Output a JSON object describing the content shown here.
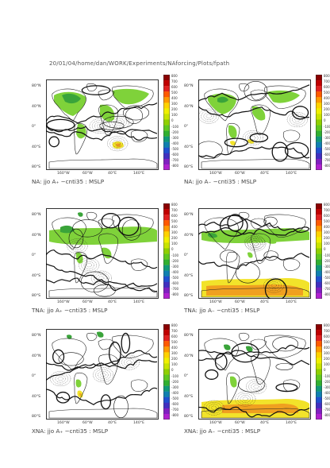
{
  "page": {
    "title": "20/01/04/home/dan/WORK/Experiments/NAforcing/Plots/fpath"
  },
  "axes": {
    "lat_labels": [
      "80°N",
      "40°N",
      "0°",
      "40°S",
      "80°S"
    ],
    "lon_labels": [
      "160°W",
      "60°W",
      "40°E",
      "140°E"
    ]
  },
  "colorbar": {
    "levels": [
      "800",
      "700",
      "600",
      "500",
      "400",
      "300",
      "200",
      "100",
      "0",
      "-100",
      "-200",
      "-300",
      "-400",
      "-500",
      "-600",
      "-700",
      "-800"
    ],
    "colors": [
      "#8b0000",
      "#c00000",
      "#e02020",
      "#ff5a00",
      "#ff9a00",
      "#ffd200",
      "#f0f000",
      "#c8e400",
      "#90d000",
      "#5fc820",
      "#30b030",
      "#109878",
      "#1080b0",
      "#2050d0",
      "#4030c0",
      "#8020c0",
      "#b020d0"
    ]
  },
  "panels": [
    {
      "caption": "NA: jjo A₊ −cnti35 : MSLP",
      "colorbar_visible": true,
      "variant": 0
    },
    {
      "caption": "NA: jjo A₋ −cnti35 : MSLP",
      "colorbar_visible": true,
      "variant": 1
    },
    {
      "caption": "TNA: jjo A₊ −cnti35 : MSLP",
      "colorbar_visible": true,
      "variant": 2
    },
    {
      "caption": "TNA: jjo A₋ −cnti35 : MSLP",
      "colorbar_visible": true,
      "variant": 3
    },
    {
      "caption": "XNA: jjo A₊ −cnti35 : MSLP",
      "colorbar_visible": true,
      "variant": 4
    },
    {
      "caption": "XNA: jjo A₋ −cnti35 : MSLP",
      "colorbar_visible": true,
      "variant": 5
    }
  ],
  "colors": {
    "coast": "#222222",
    "contour": "#111111",
    "shade_green": "#7fd23a",
    "shade_dark_green": "#3aa43a",
    "shade_yellow": "#f2e32a",
    "shade_orange": "#f0a020"
  }
}
